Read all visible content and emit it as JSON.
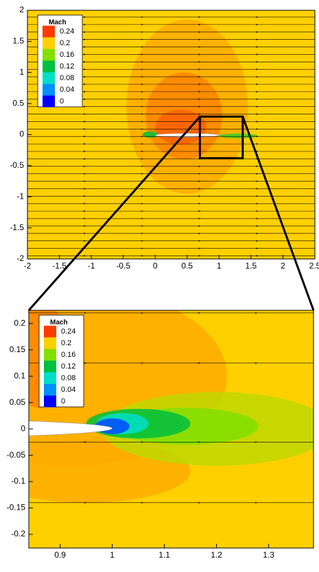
{
  "chart_data": [
    {
      "type": "contour",
      "legend_title": "Mach",
      "levels": [
        0.24,
        0.2,
        0.16,
        0.12,
        0.08,
        0.04,
        0
      ],
      "colormap": [
        "#ff3a00",
        "#ffd000",
        "#80e000",
        "#00c040",
        "#00e0c8",
        "#0090ff",
        "#0000ff"
      ],
      "background_mach": 0.2,
      "xlim": [
        -2,
        2.5
      ],
      "ylim": [
        -2,
        2
      ],
      "xticks": [
        -2,
        -1.5,
        -1,
        -0.5,
        0,
        0.5,
        1,
        1.5,
        2,
        2.5
      ],
      "yticks": [
        -2,
        -1.5,
        -1,
        -0.5,
        0,
        0.5,
        1,
        1.5,
        2
      ],
      "regions": [
        {
          "mach": 0.21,
          "cx": 0.5,
          "cy": 0.45,
          "rx": 0.95,
          "ry": 1.4
        },
        {
          "mach": 0.22,
          "cx": 0.45,
          "cy": 0.3,
          "rx": 0.6,
          "ry": 0.7
        },
        {
          "mach": 0.23,
          "cx": 0.4,
          "cy": 0.12,
          "rx": 0.4,
          "ry": 0.28
        },
        {
          "mach": 0.14,
          "cx": 1.3,
          "cy": -0.02,
          "rx": 0.3,
          "ry": 0.04
        },
        {
          "mach": 0.12,
          "cx": -0.08,
          "cy": 0,
          "rx": 0.12,
          "ry": 0.05
        }
      ],
      "body": {
        "xlim": [
          0,
          1
        ],
        "ylim": [
          -0.04,
          0.02
        ]
      },
      "streamline_y": [
        -1.95,
        -1.83,
        -1.71,
        -1.59,
        -1.47,
        -1.35,
        -1.23,
        -1.11,
        -0.99,
        -0.87,
        -0.75,
        -0.63,
        -0.51,
        -0.39,
        -0.27,
        -0.15,
        -0.03,
        0.09,
        0.21,
        0.33,
        0.45,
        0.57,
        0.69,
        0.81,
        0.93,
        1.05,
        1.17,
        1.29,
        1.41,
        1.53,
        1.65,
        1.77,
        1.89
      ],
      "zoom_region": {
        "xlim": [
          0.7,
          1.37
        ],
        "ylim": [
          -0.38,
          0.29
        ]
      }
    },
    {
      "type": "contour",
      "legend_title": "Mach",
      "levels": [
        0.24,
        0.2,
        0.16,
        0.12,
        0.08,
        0.04,
        0
      ],
      "colormap": [
        "#ff3a00",
        "#ffd000",
        "#80e000",
        "#00c040",
        "#00e0c8",
        "#0090ff",
        "#0000ff"
      ],
      "background_mach": 0.2,
      "xlim": [
        0.84,
        1.386
      ],
      "ylim": [
        -0.226,
        0.225
      ],
      "xticks": [
        0.9,
        1,
        1.1,
        1.2,
        1.3
      ],
      "yticks": [
        -0.2,
        -0.15,
        -0.1,
        -0.05,
        0,
        0.05,
        0.1,
        0.15,
        0.2
      ],
      "regions": [
        {
          "mach": 0.21,
          "cx": 0.92,
          "cy": 0.1,
          "rx": 0.3,
          "ry": 0.17
        },
        {
          "mach": 0.22,
          "cx": 0.86,
          "cy": 0.14,
          "rx": 0.06,
          "ry": 0.1
        },
        {
          "mach": 0.21,
          "cx": 0.95,
          "cy": -0.08,
          "rx": 0.2,
          "ry": 0.06
        },
        {
          "mach": 0.18,
          "cx": 1.2,
          "cy": 0,
          "rx": 0.22,
          "ry": 0.07
        },
        {
          "mach": 0.16,
          "cx": 1.14,
          "cy": 0.005,
          "rx": 0.14,
          "ry": 0.035
        },
        {
          "mach": 0.12,
          "cx": 1.05,
          "cy": 0.01,
          "rx": 0.1,
          "ry": 0.028
        },
        {
          "mach": 0.08,
          "cx": 1.02,
          "cy": 0.01,
          "rx": 0.05,
          "ry": 0.02
        },
        {
          "mach": 0.02,
          "cx": 1.0,
          "cy": 0.005,
          "rx": 0.033,
          "ry": 0.015
        }
      ],
      "body": {
        "xlim": [
          0,
          1
        ],
        "ylim": [
          -0.018,
          0.02
        ]
      },
      "streamline_y": [
        0.22,
        0.125,
        -0.025,
        -0.14
      ]
    }
  ]
}
